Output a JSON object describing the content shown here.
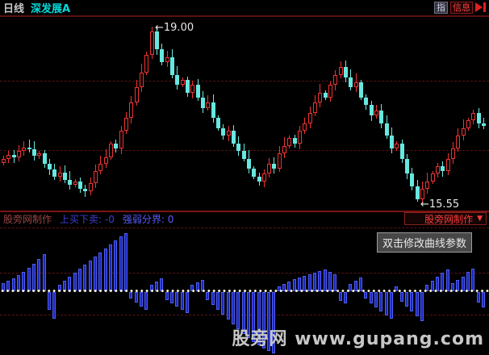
{
  "header": {
    "period": "日线",
    "symbol": "深发展A",
    "buttons": [
      {
        "label": "指"
      },
      {
        "label": "信息"
      }
    ]
  },
  "indicator": {
    "maker_credit": "股旁网制作",
    "buy_sell_label": "上买下卖:",
    "buy_sell_value": "-0",
    "strength_label": "强弱分界:",
    "strength_value": "0",
    "dropdown_label": "股旁网制作",
    "dropdown_arrow": "▼"
  },
  "tooltip": {
    "text": "双击修改曲线参数"
  },
  "watermark": {
    "site": "股旁网",
    "url": "www.gupang.com"
  },
  "colors": {
    "up": "#ee3333",
    "down": "#66e8e0",
    "bar_fill": "#1a27b8",
    "bar_edge": "#4e5df2",
    "grid": "#591212",
    "accent_red": "#ff3c3c",
    "symbol_cyan": "#00dcdc"
  },
  "chart_data": [
    {
      "type": "candlestick",
      "title": "深发展A 日线",
      "first_open": 16.32,
      "closes": [
        16.4,
        16.48,
        16.42,
        16.55,
        16.62,
        16.58,
        16.45,
        16.5,
        16.3,
        16.18,
        16.05,
        16.12,
        15.98,
        15.88,
        15.95,
        15.8,
        15.75,
        15.92,
        16.15,
        16.3,
        16.42,
        16.7,
        16.6,
        16.95,
        17.2,
        17.5,
        17.8,
        18.1,
        18.45,
        18.9,
        18.55,
        18.3,
        18.4,
        18.05,
        17.85,
        17.95,
        17.7,
        17.85,
        17.6,
        17.4,
        17.5,
        17.2,
        17.0,
        16.85,
        16.95,
        16.7,
        16.55,
        16.4,
        16.2,
        16.05,
        15.95,
        16.1,
        16.3,
        16.2,
        16.5,
        16.65,
        16.8,
        16.7,
        16.95,
        17.1,
        17.3,
        17.5,
        17.7,
        17.6,
        17.85,
        18.05,
        18.2,
        18.0,
        17.8,
        17.9,
        17.6,
        17.45,
        17.25,
        17.35,
        17.1,
        16.85,
        16.6,
        16.7,
        16.4,
        16.1,
        15.85,
        15.6,
        15.8,
        15.95,
        16.1,
        16.25,
        16.15,
        16.4,
        16.6,
        16.85,
        17.0,
        17.15,
        17.3,
        17.1,
        17.05
      ],
      "peak": {
        "index": 29,
        "high": 19.0,
        "label": "←19.00"
      },
      "trough": {
        "index": 81,
        "low": 15.55,
        "label": "←15.55"
      },
      "ylim": [
        15.55,
        19.0
      ]
    },
    {
      "type": "bar",
      "name": "strength-histogram",
      "zero_line": 0,
      "values": [
        10,
        13,
        16,
        20,
        24,
        29,
        34,
        40,
        46,
        -22,
        -33,
        8,
        13,
        18,
        23,
        28,
        33,
        38,
        43,
        48,
        53,
        58,
        63,
        68,
        72,
        -8,
        -13,
        -18,
        -22,
        8,
        12,
        16,
        -10,
        -14,
        -18,
        -22,
        -26,
        8,
        11,
        14,
        -10,
        -16,
        -22,
        -28,
        -34,
        -40,
        -46,
        -52,
        -57,
        -62,
        -66,
        -70,
        -73,
        -76,
        6,
        9,
        12,
        15,
        17,
        19,
        21,
        23,
        25,
        27,
        24,
        21,
        -11,
        -14,
        9,
        13,
        17,
        -8,
        -14,
        -19,
        -24,
        -29,
        -33,
        6,
        -12,
        -18,
        -24,
        -30,
        -36,
        8,
        13,
        18,
        23,
        27,
        10,
        14,
        18,
        24,
        28,
        -13,
        -19
      ]
    }
  ]
}
